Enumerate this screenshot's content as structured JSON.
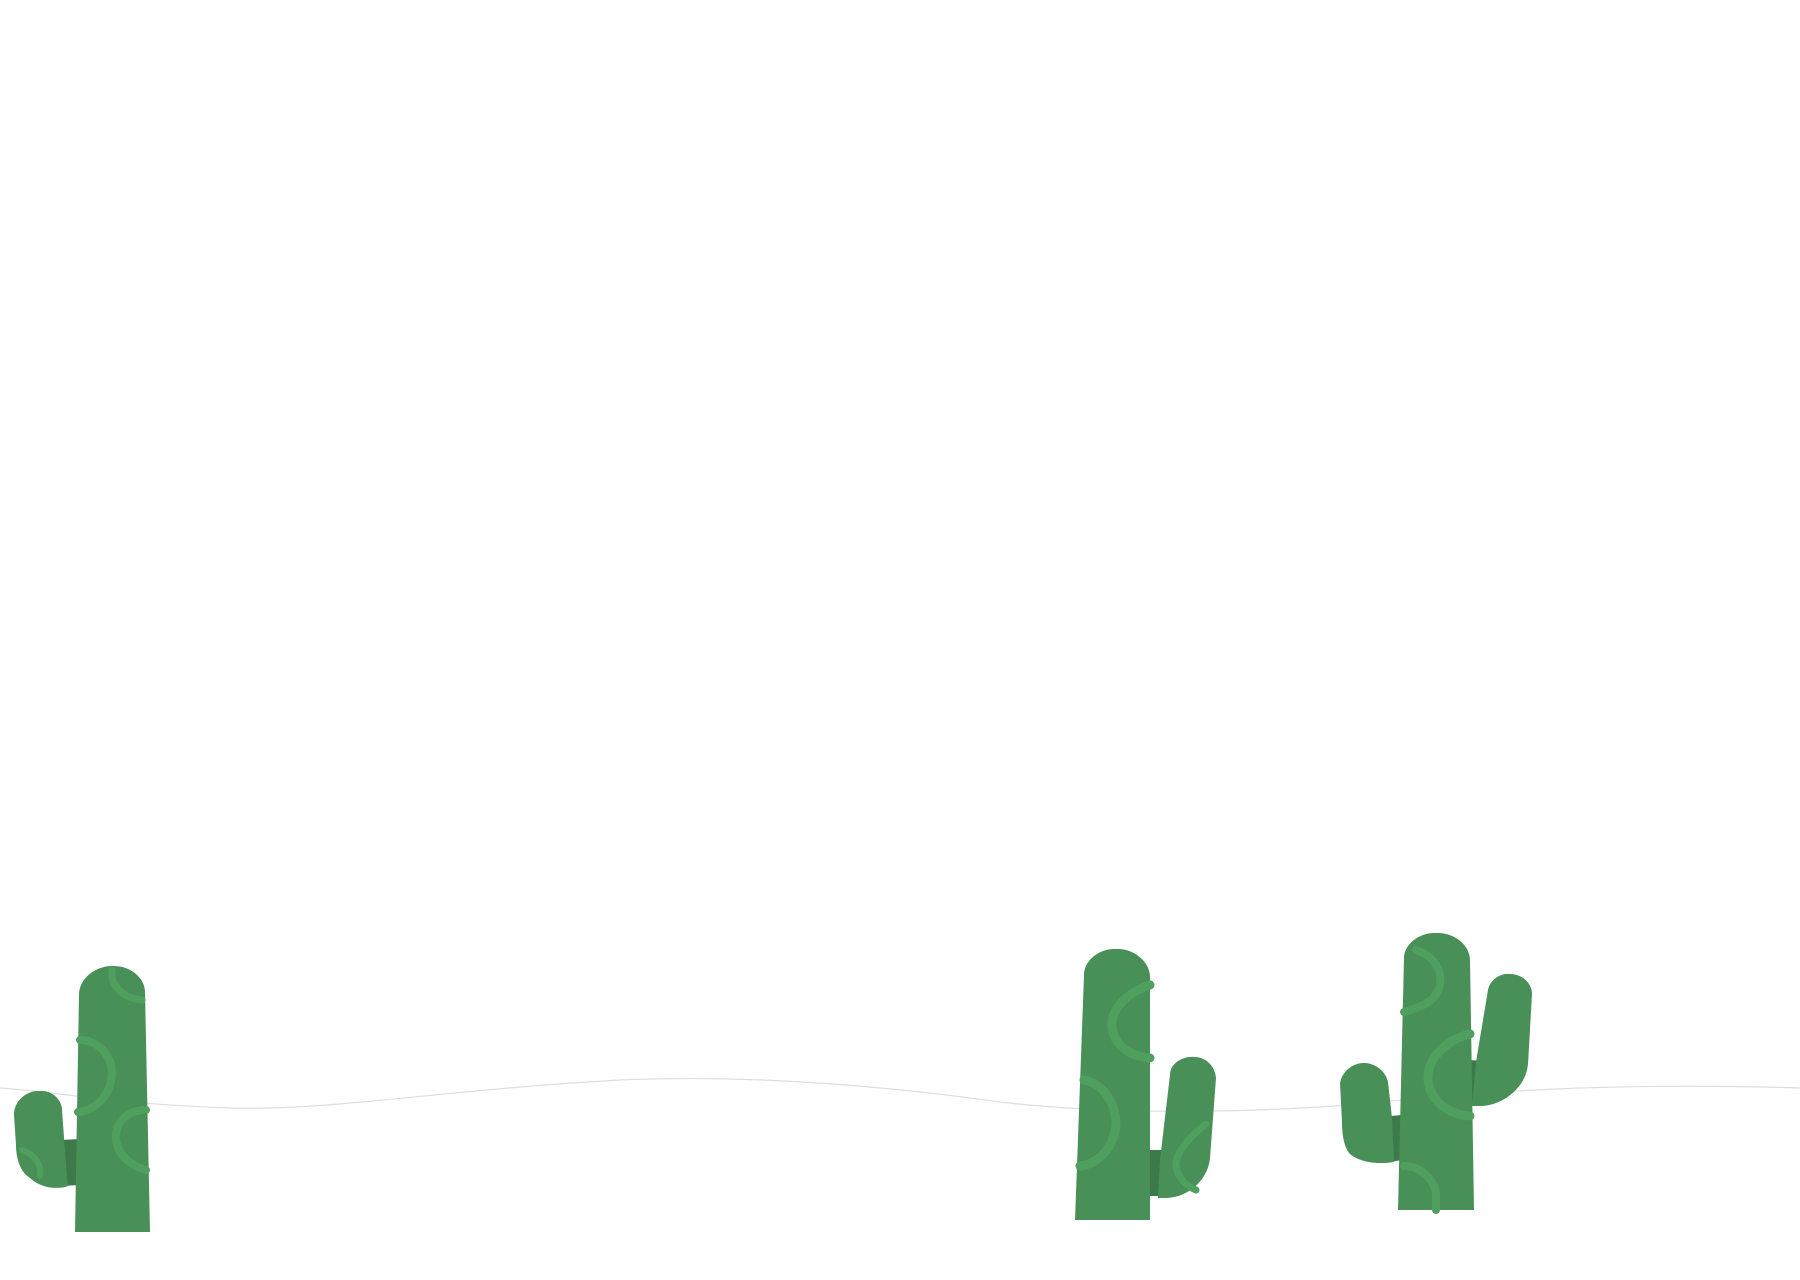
{
  "scene": {
    "type": "desert-landscape",
    "background_color": "#ffffff",
    "horizon_line_color": "#dedede",
    "cactus_count": 3
  },
  "colors": {
    "cactus_body": "#488F58",
    "cactus_shadow": "#3C7A49",
    "cactus_pattern": "#4FA05F"
  },
  "cacti": [
    {
      "name": "cactus-left",
      "arm_left": true,
      "arm_right": false
    },
    {
      "name": "cactus-middle",
      "arm_left": false,
      "arm_right": true
    },
    {
      "name": "cactus-right",
      "arm_left": true,
      "arm_right": true
    }
  ]
}
